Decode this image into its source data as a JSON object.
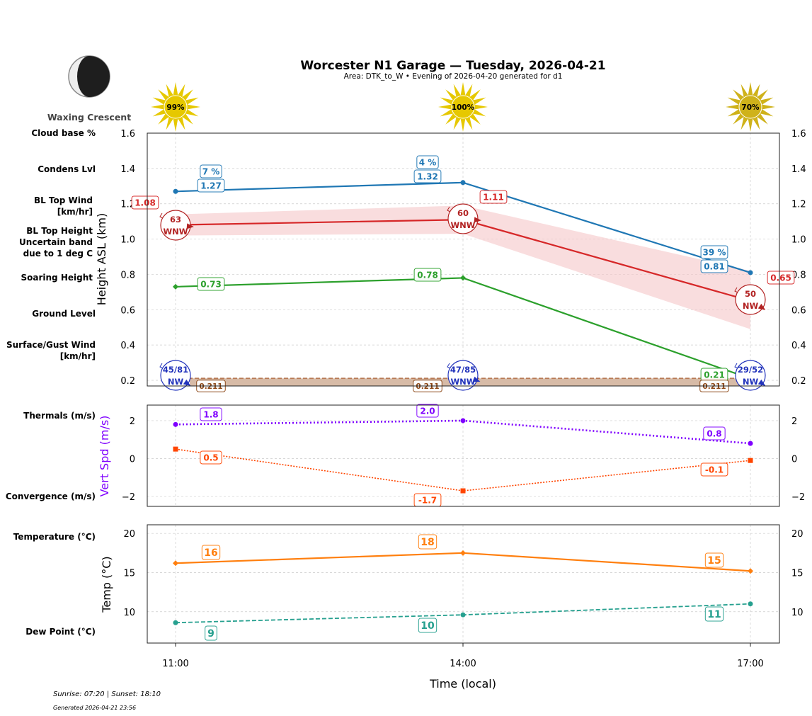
{
  "title": "Worcester N1 Garage — Tuesday, 2026-04-21",
  "subtitle": "Area: DTK_to_W • Evening of 2026-04-20 generated for d1",
  "moon": {
    "phase": "Waxing Crescent",
    "icon": "waxing-crescent-moon-icon"
  },
  "sun_icons": [
    {
      "time": "11:00",
      "label": "99%"
    },
    {
      "time": "14:00",
      "label": "100%"
    },
    {
      "time": "17:00",
      "label": "70%"
    }
  ],
  "left_labels": {
    "cloud_base": "Cloud base %",
    "condens": "Condens Lvl",
    "bl_wind": "BL Top Wind\n[km/hr]",
    "bl_height": "BL Top Height\nUncertain band\ndue to 1 deg C",
    "soaring": "Soaring Height",
    "ground": "Ground Level",
    "surface_wind": "Surface/Gust Wind\n[km/hr]",
    "thermals": "Thermals (m/s)",
    "convergence": "Convergence (m/s)",
    "temperature": "Temperature (°C)",
    "dewpoint": "Dew Point (°C)"
  },
  "colors": {
    "cloud": "#1f77b4",
    "bl": "#d62728",
    "bl_wind": "#b22222",
    "band": "#f5c6c8",
    "soaring": "#2ca02c",
    "ground": "#8b4513",
    "surface_wind": "#2233bb",
    "thermals": "#7f00ff",
    "convergence": "#ff4500",
    "temperature": "#ff7f0e",
    "dewpoint": "#26a08f",
    "sun": "#e6c800"
  },
  "footer": {
    "sun_times": "Sunrise: 07:20 | Sunset: 18:10",
    "generated": "Generated 2026-04-21 23:56"
  },
  "chart_data": [
    {
      "type": "line",
      "ylabel": "Height ASL (km)",
      "ylim": [
        0.168,
        1.6
      ],
      "yticks": [
        "0.2",
        "0.4",
        "0.6",
        "0.8",
        "1.0",
        "1.2",
        "1.4",
        "1.6"
      ],
      "grid": true,
      "x": [
        "11:00",
        "14:00",
        "17:00"
      ],
      "series": [
        {
          "name": "Condens Lvl",
          "values": [
            1.27,
            1.32,
            0.81
          ],
          "labels": [
            "1.27",
            "1.32",
            "0.81"
          ]
        },
        {
          "name": "Cloud base %",
          "values": [
            7,
            4,
            39
          ],
          "labels": [
            "7 %",
            "4 %",
            "39 %"
          ]
        },
        {
          "name": "BL Top Height",
          "values": [
            1.08,
            1.11,
            0.65
          ],
          "labels": [
            "1.08",
            "1.11",
            "0.65"
          ],
          "band_low": [
            1.02,
            1.03,
            0.49
          ],
          "band_high": [
            1.14,
            1.19,
            0.82
          ]
        },
        {
          "name": "BL Top Wind [km/hr]",
          "speed": [
            "63",
            "60",
            "50"
          ],
          "dir": [
            "WNW",
            "WNW",
            "NW"
          ]
        },
        {
          "name": "Soaring Height",
          "values": [
            0.73,
            0.78,
            0.21
          ],
          "labels": [
            "0.73",
            "0.78",
            "0.21"
          ]
        },
        {
          "name": "Ground Level",
          "values": [
            0.211,
            0.211,
            0.211
          ],
          "labels": [
            "0.211",
            "0.211",
            "0.211"
          ]
        },
        {
          "name": "Surface/Gust Wind [km/hr]",
          "speed": [
            "45/81",
            "47/85",
            "29/52"
          ],
          "dir": [
            "NW",
            "WNW",
            "NW"
          ]
        }
      ]
    },
    {
      "type": "line",
      "ylabel": "Vert Spd (m/s)",
      "ylim": [
        -2.52,
        2.82
      ],
      "yticks": [
        "−2",
        "0",
        "2"
      ],
      "grid": true,
      "x": [
        "11:00",
        "14:00",
        "17:00"
      ],
      "series": [
        {
          "name": "Thermals (m/s)",
          "values": [
            1.8,
            2.0,
            0.8
          ],
          "labels": [
            "1.8",
            "2.0",
            "0.8"
          ]
        },
        {
          "name": "Convergence (m/s)",
          "values": [
            0.5,
            -1.7,
            -0.1
          ],
          "labels": [
            "0.5",
            "-1.7",
            "-0.1"
          ]
        }
      ]
    },
    {
      "type": "line",
      "ylabel": "Temp (°C)",
      "xlabel": "Time (local)",
      "ylim": [
        6.0,
        21.1
      ],
      "yticks": [
        "10",
        "15",
        "20"
      ],
      "xticks": [
        "11:00",
        "14:00",
        "17:00"
      ],
      "grid": true,
      "x": [
        "11:00",
        "14:00",
        "17:00"
      ],
      "series": [
        {
          "name": "Temperature (°C)",
          "values": [
            16.2,
            17.5,
            15.2
          ],
          "labels": [
            "16",
            "18",
            "15"
          ]
        },
        {
          "name": "Dew Point (°C)",
          "values": [
            8.6,
            9.6,
            11.0
          ],
          "labels": [
            "9",
            "10",
            "11"
          ]
        }
      ]
    }
  ]
}
